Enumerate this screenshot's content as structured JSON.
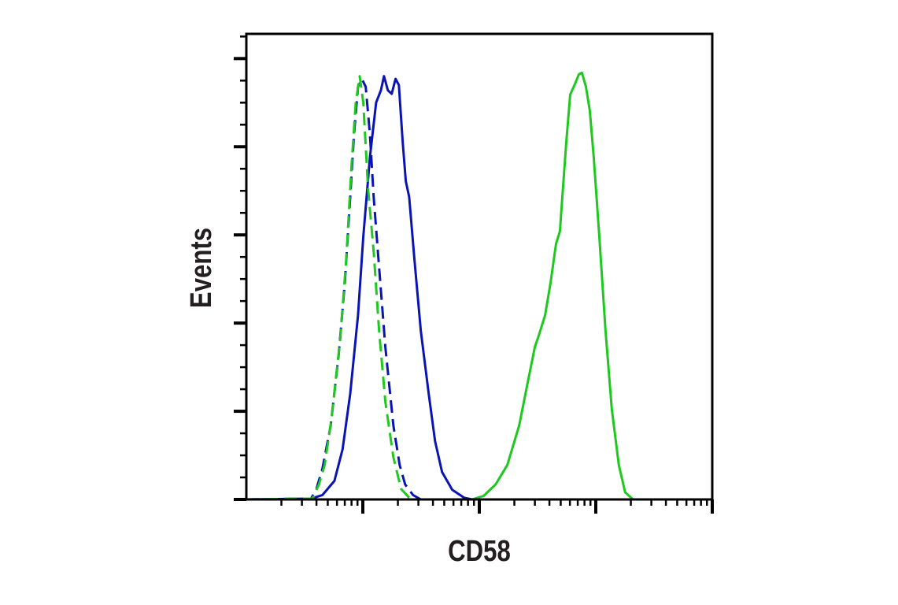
{
  "chart_data": {
    "type": "line",
    "title": "",
    "xlabel": "CD58",
    "ylabel": "Events",
    "x_scale": "log",
    "xlim": [
      1,
      10000
    ],
    "ylim": [
      0,
      5.28
    ],
    "y_major_ticks": [
      0,
      1,
      2,
      3,
      4,
      5
    ],
    "grid": false,
    "legend": "none",
    "series": [
      {
        "color": "#0a14b4",
        "dash": false,
        "points": [
          [
            1,
            0
          ],
          [
            3.6,
            0.01
          ],
          [
            4.5,
            0.05
          ],
          [
            5.7,
            0.21
          ],
          [
            6.7,
            0.57
          ],
          [
            7.8,
            1.2
          ],
          [
            9.1,
            2.09
          ],
          [
            10.1,
            2.98
          ],
          [
            11.5,
            3.88
          ],
          [
            13,
            4.5
          ],
          [
            14.3,
            4.64
          ],
          [
            15.2,
            4.8
          ],
          [
            16.4,
            4.64
          ],
          [
            17.7,
            4.6
          ],
          [
            19.1,
            4.77
          ],
          [
            20.4,
            4.7
          ],
          [
            22,
            4.05
          ],
          [
            23.4,
            3.61
          ],
          [
            25,
            3.43
          ],
          [
            27.8,
            2.71
          ],
          [
            31.5,
            1.91
          ],
          [
            36.8,
            1.2
          ],
          [
            41.7,
            0.66
          ],
          [
            47.9,
            0.31
          ],
          [
            58.6,
            0.11
          ],
          [
            74,
            0.02
          ],
          [
            86.5,
            0
          ],
          [
            10000,
            0
          ]
        ]
      },
      {
        "color": "#0a14b4",
        "dash": true,
        "points": [
          [
            1,
            0
          ],
          [
            3.6,
            0.01
          ],
          [
            4.0,
            0.12
          ],
          [
            4.5,
            0.35
          ],
          [
            5.3,
            0.84
          ],
          [
            6.2,
            1.64
          ],
          [
            7.0,
            2.45
          ],
          [
            7.8,
            3.43
          ],
          [
            8.4,
            4.14
          ],
          [
            9.1,
            4.68
          ],
          [
            9.8,
            4.77
          ],
          [
            10.6,
            4.68
          ],
          [
            11.5,
            4.14
          ],
          [
            12.4,
            3.43
          ],
          [
            13.8,
            2.63
          ],
          [
            15.6,
            1.73
          ],
          [
            18.3,
            0.84
          ],
          [
            20.7,
            0.39
          ],
          [
            23.1,
            0.17
          ],
          [
            27,
            0.05
          ],
          [
            31.5,
            0
          ],
          [
            10000,
            0
          ]
        ]
      },
      {
        "color": "#1ec81e",
        "dash": true,
        "points": [
          [
            1,
            0
          ],
          [
            3.7,
            0.01
          ],
          [
            4.2,
            0.17
          ],
          [
            4.7,
            0.39
          ],
          [
            5.4,
            0.93
          ],
          [
            6.4,
            1.82
          ],
          [
            7.2,
            2.72
          ],
          [
            8.0,
            3.79
          ],
          [
            8.7,
            4.5
          ],
          [
            9.4,
            4.8
          ],
          [
            10.1,
            4.5
          ],
          [
            11.1,
            3.52
          ],
          [
            12.4,
            2.81
          ],
          [
            13.8,
            1.91
          ],
          [
            15.6,
            1.11
          ],
          [
            18.3,
            0.48
          ],
          [
            21.3,
            0.12
          ],
          [
            25,
            0.02
          ],
          [
            29.1,
            0
          ],
          [
            10000,
            0
          ]
        ]
      },
      {
        "color": "#1ec81e",
        "dash": false,
        "points": [
          [
            1,
            0
          ],
          [
            86.5,
            0
          ],
          [
            109,
            0.04
          ],
          [
            138,
            0.17
          ],
          [
            174,
            0.39
          ],
          [
            220,
            0.84
          ],
          [
            257,
            1.29
          ],
          [
            300,
            1.73
          ],
          [
            324,
            1.86
          ],
          [
            367,
            2.09
          ],
          [
            408,
            2.45
          ],
          [
            456,
            2.9
          ],
          [
            492,
            3.04
          ],
          [
            516,
            3.43
          ],
          [
            558,
            4.05
          ],
          [
            603,
            4.59
          ],
          [
            671,
            4.73
          ],
          [
            715,
            4.82
          ],
          [
            761,
            4.84
          ],
          [
            823,
            4.68
          ],
          [
            889,
            4.41
          ],
          [
            961,
            3.88
          ],
          [
            1072,
            2.98
          ],
          [
            1213,
            1.91
          ],
          [
            1374,
            1.02
          ],
          [
            1578,
            0.39
          ],
          [
            1786,
            0.08
          ],
          [
            2089,
            0
          ],
          [
            10000,
            0
          ]
        ]
      }
    ]
  }
}
